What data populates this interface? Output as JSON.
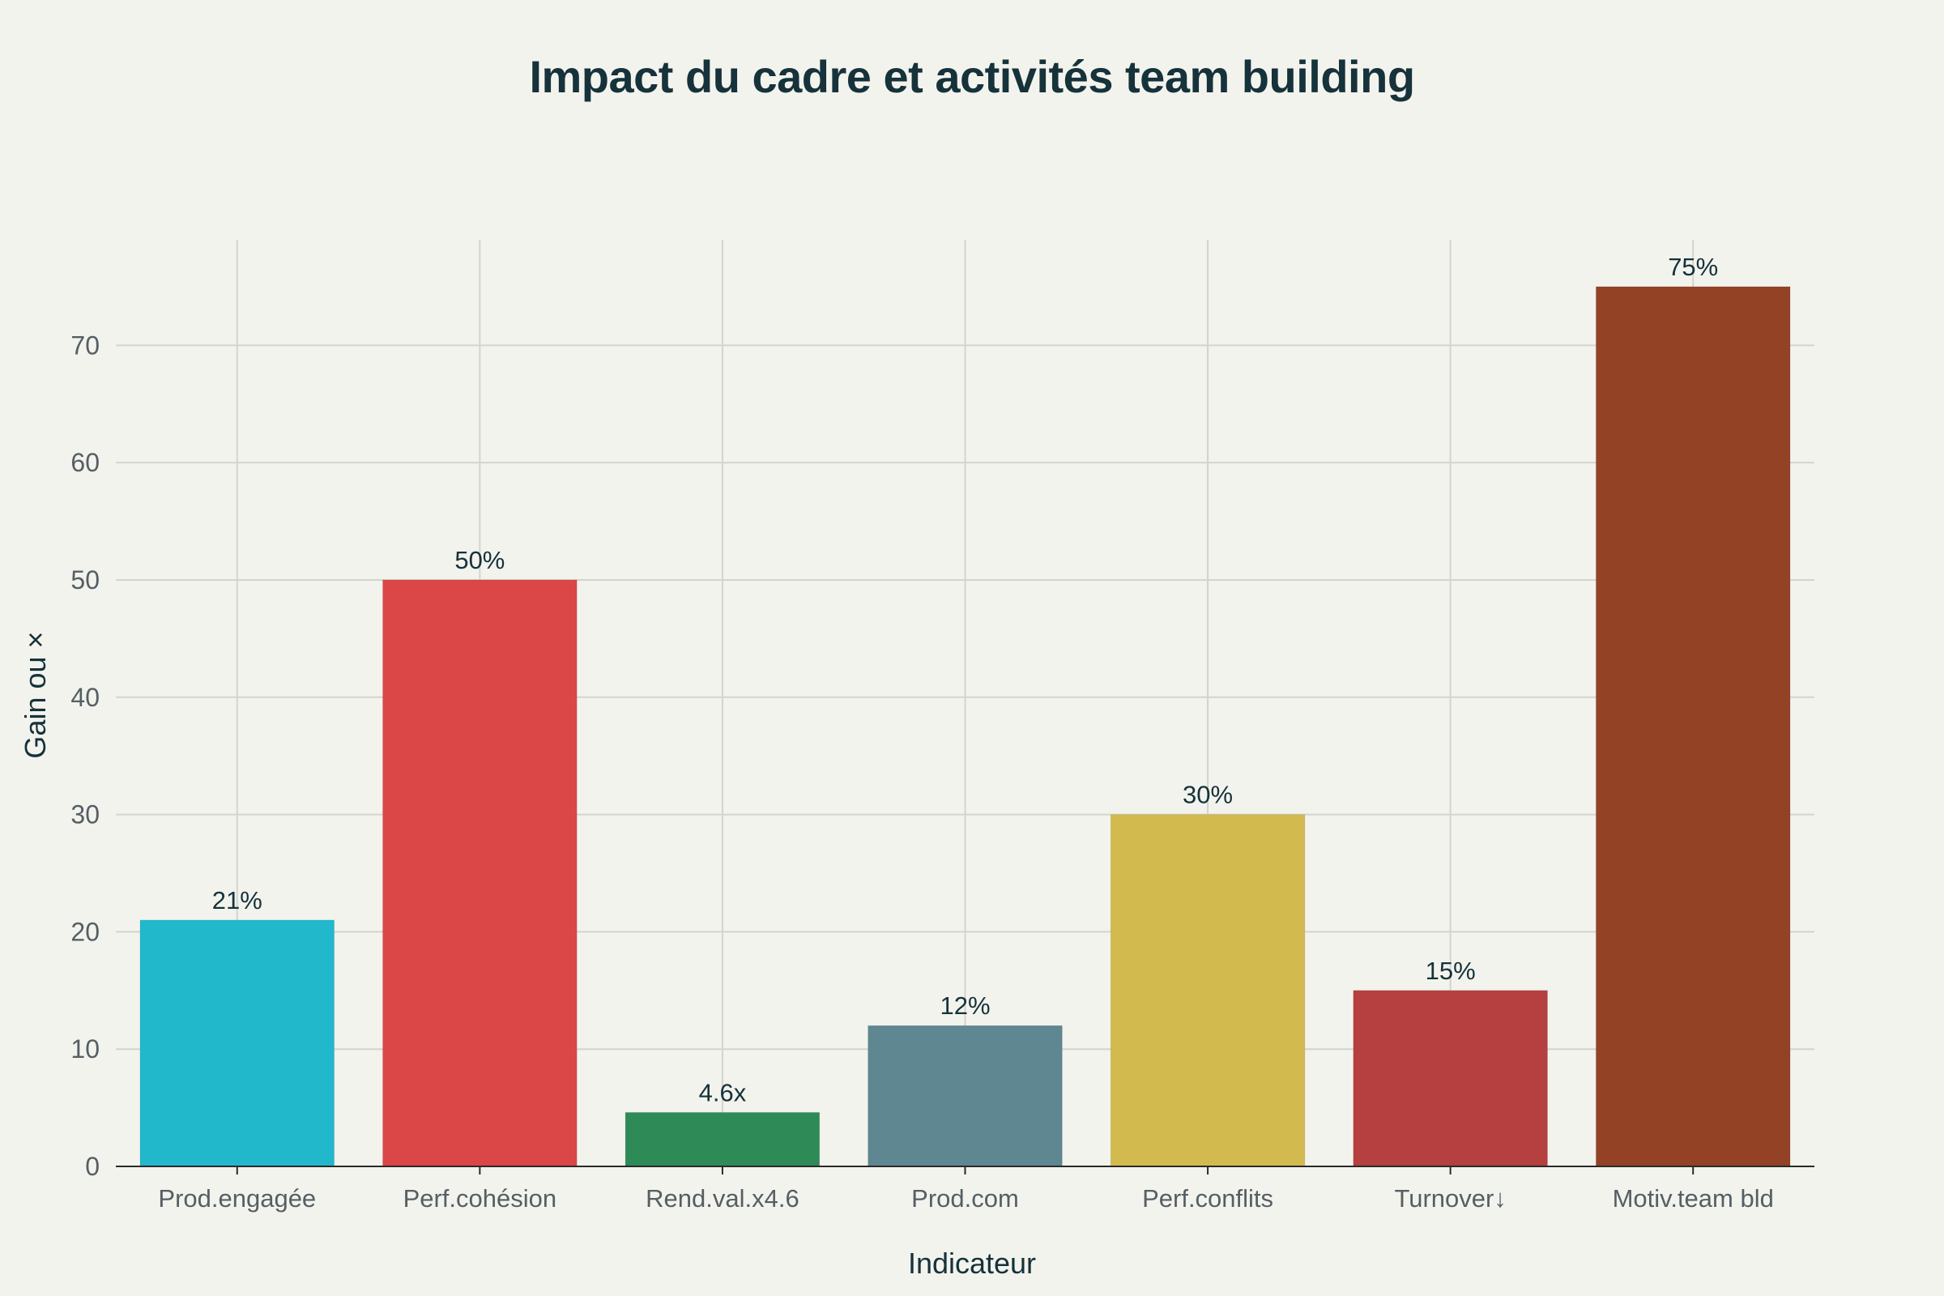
{
  "chart_data": {
    "type": "bar",
    "title": "Impact du cadre et activités team building",
    "xlabel": "Indicateur",
    "ylabel": "Gain ou ×",
    "categories": [
      "Prod.engagée",
      "Perf.cohésion",
      "Rend.val.x4.6",
      "Prod.com",
      "Perf.conflits",
      "Turnover↓",
      "Motiv.team bld"
    ],
    "values": [
      21,
      50,
      4.6,
      12,
      30,
      15,
      75
    ],
    "data_labels": [
      "21%",
      "50%",
      "4.6x",
      "12%",
      "30%",
      "15%",
      "75%"
    ],
    "colors": [
      "#21b8cc",
      "#db4647",
      "#2e8b57",
      "#5e8791",
      "#d3ba4e",
      "#b63f3f",
      "#944225"
    ],
    "ylim": [
      0,
      79
    ],
    "yticks": [
      0,
      10,
      20,
      30,
      40,
      50,
      60,
      70
    ],
    "grid": true,
    "legend": "none"
  }
}
